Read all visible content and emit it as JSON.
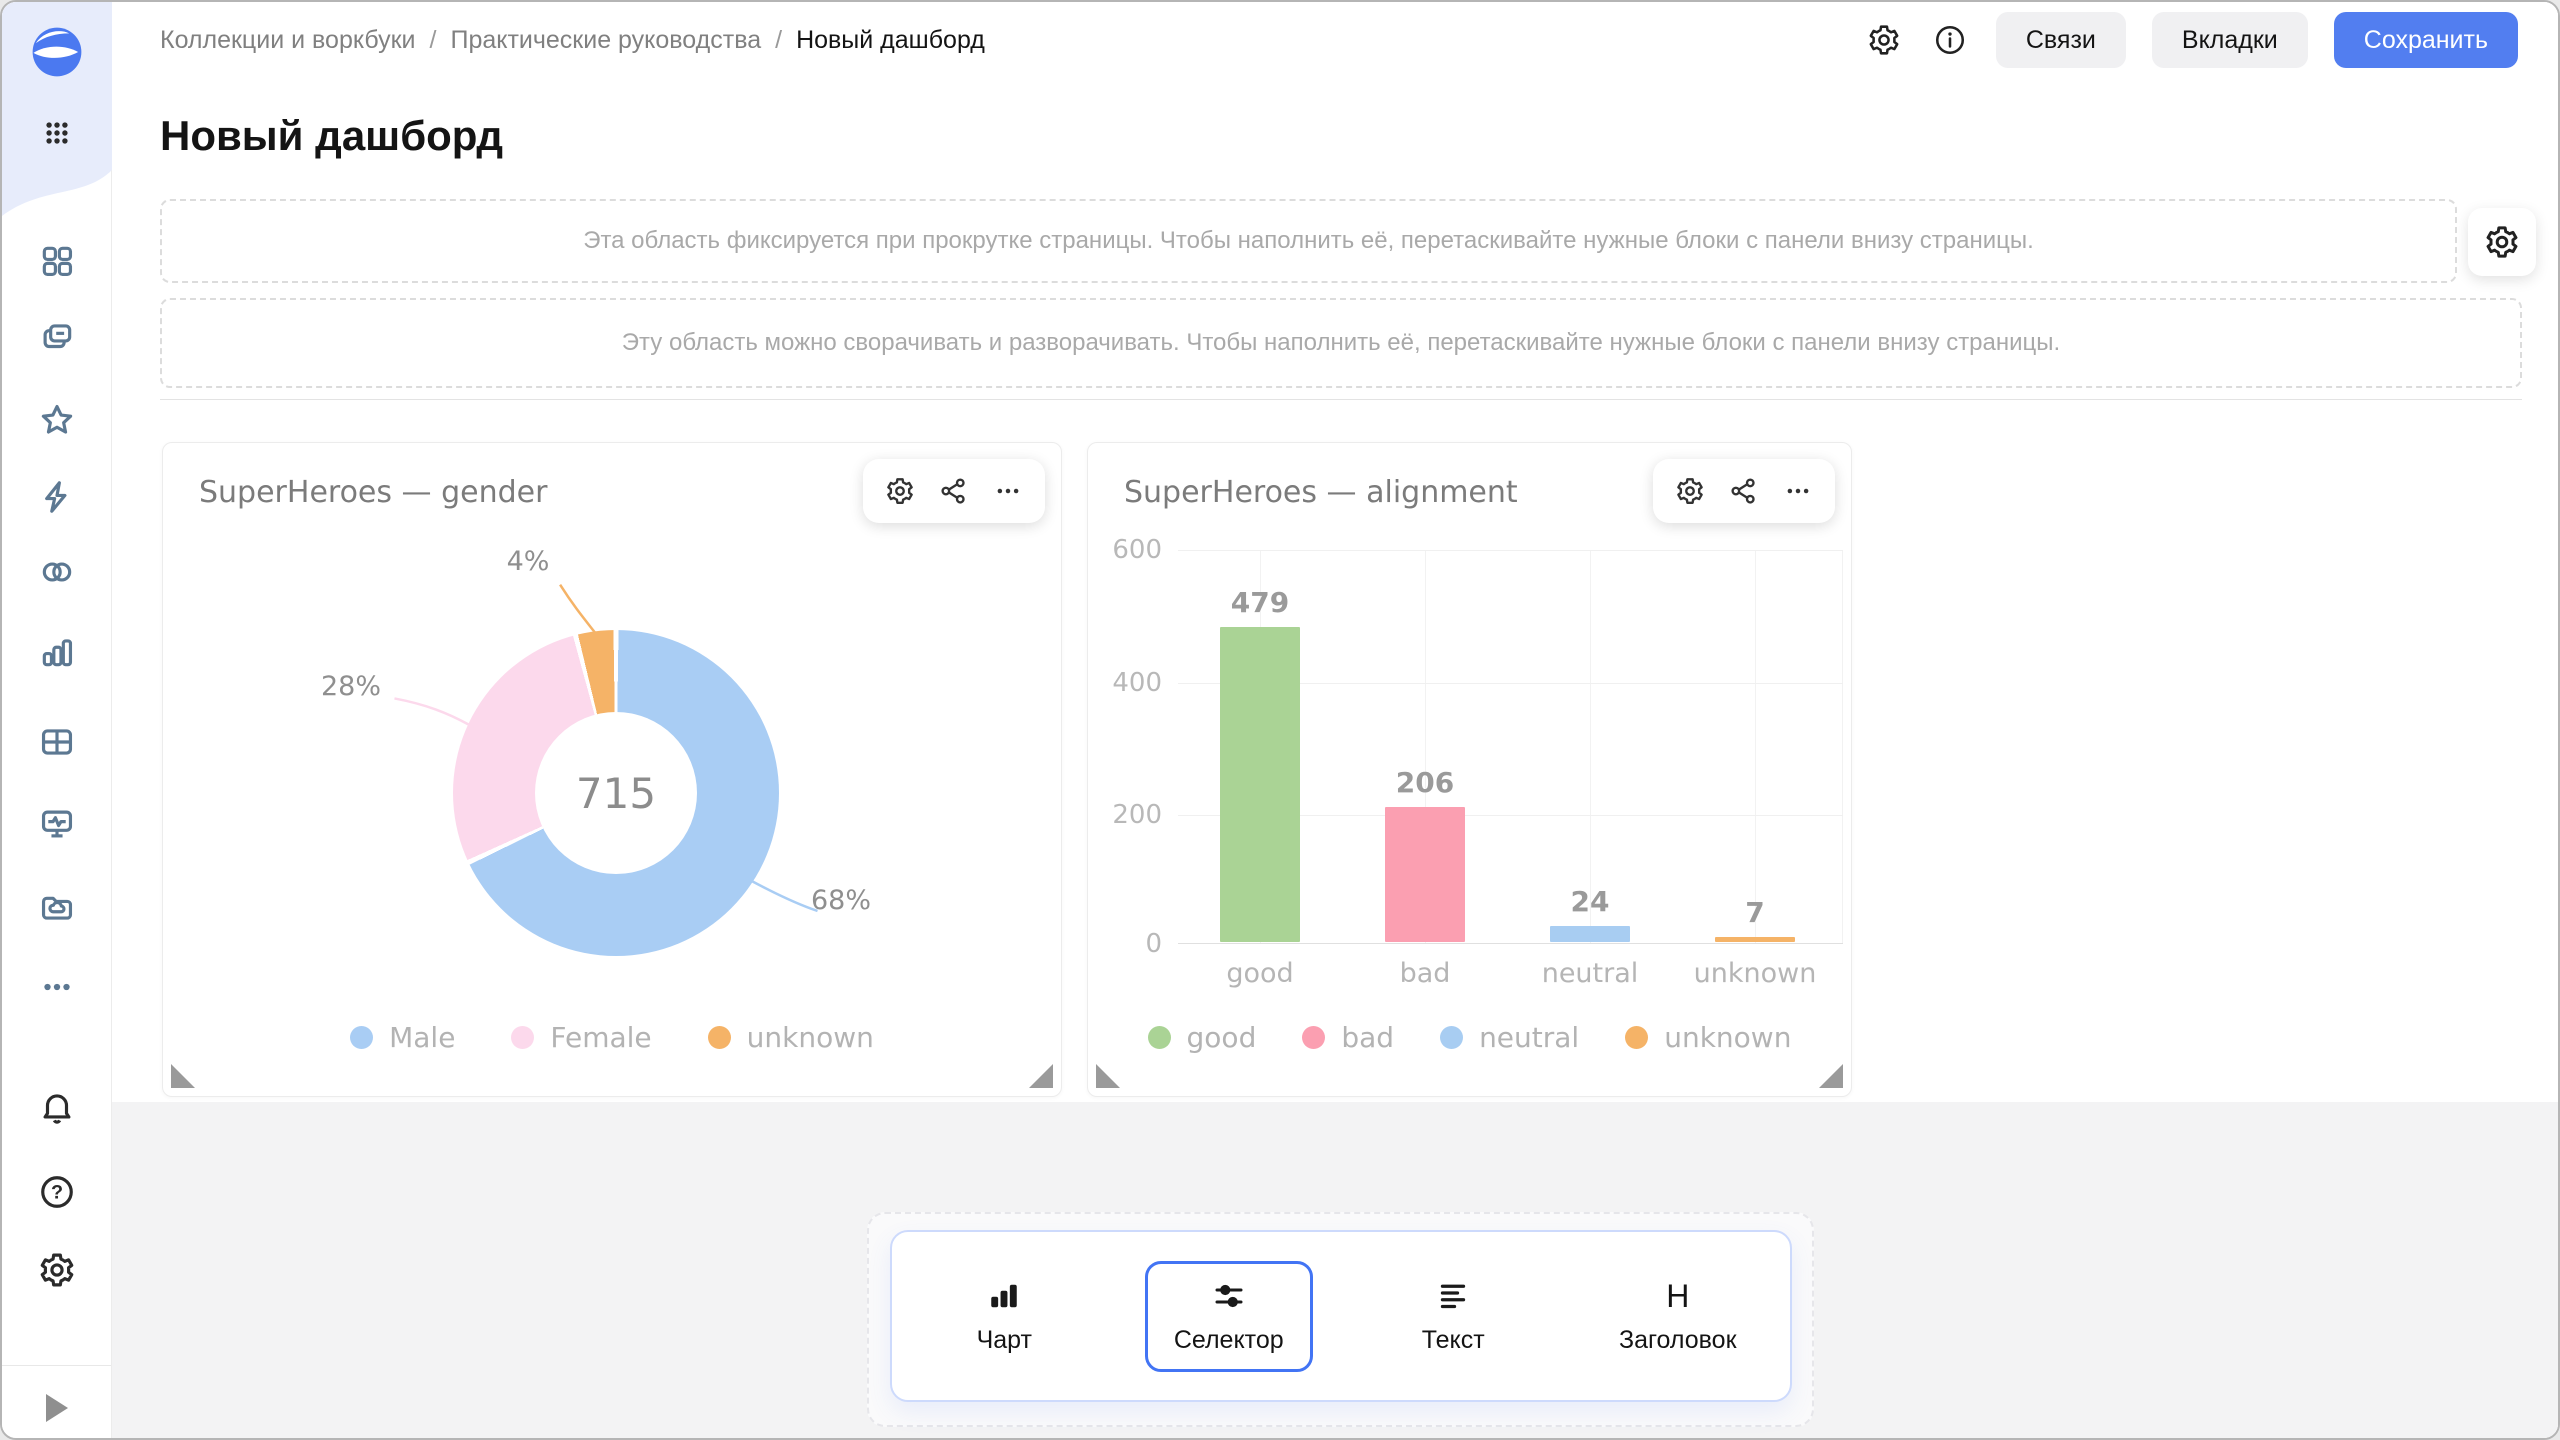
{
  "topbar": {
    "breadcrumbs": [
      {
        "label": "Коллекции и воркбуки"
      },
      {
        "label": "Практические руководства"
      },
      {
        "label": "Новый дашборд"
      }
    ],
    "crumb_separator": "/",
    "links_button": "Связи",
    "tabs_button": "Вкладки",
    "save_button": "Сохранить",
    "icons": [
      "settings-gear-icon",
      "info-circle-icon"
    ]
  },
  "sidebar": {
    "icons": [
      "datalens-logo",
      "apps-grid-icon",
      "dashboard-grid-icon",
      "collections-icon",
      "star-icon",
      "lightning-icon",
      "connections-icon",
      "charts-icon",
      "table-icon",
      "monitoring-icon",
      "cloud-folder-icon",
      "more-ellipsis-icon",
      "bell-icon",
      "help-icon",
      "settings-icon",
      "expand-play-icon"
    ]
  },
  "page": {
    "title": "Новый дашборд",
    "fixed_area_hint": "Эта область фиксируется при прокрутке страницы. Чтобы наполнить её, перетаскивайте нужные блоки с панели внизу страницы.",
    "collapsible_area_hint": "Эту область можно сворачивать и разворачивать. Чтобы наполнить её, перетаскивайте нужные блоки с панели внизу страницы."
  },
  "chart_data": [
    {
      "type": "pie",
      "donut": true,
      "title": "SuperHeroes — gender",
      "categories": [
        "Male",
        "Female",
        "unknown"
      ],
      "values": [
        68,
        28,
        4
      ],
      "labels": [
        "68%",
        "28%",
        "4%"
      ],
      "center_total": "715",
      "colors": [
        "#a9cdf4",
        "#fcd9ec",
        "#f5b367"
      ],
      "legend_position": "bottom"
    },
    {
      "type": "bar",
      "title": "SuperHeroes — alignment",
      "categories": [
        "good",
        "bad",
        "neutral",
        "unknown"
      ],
      "values": [
        479,
        206,
        24,
        7
      ],
      "colors": [
        "#aad395",
        "#fb9fb1",
        "#a8cdf2",
        "#f5b367"
      ],
      "ylim": [
        0,
        600
      ],
      "yticks": [
        0,
        200,
        400,
        600
      ],
      "grid": true,
      "legend_position": "bottom"
    }
  ],
  "widget_toolbar_icons": [
    "gear-icon",
    "relations-icon",
    "more-icon"
  ],
  "panel": {
    "items": [
      {
        "label": "Чарт",
        "selected": false
      },
      {
        "label": "Селектор",
        "selected": true
      },
      {
        "label": "Текст",
        "selected": false
      },
      {
        "label": "Заголовок",
        "selected": false
      }
    ],
    "header_glyph": "H"
  },
  "colors": {
    "accent_blue": "#527ef0",
    "selected_border": "#4274f4",
    "panel_border": "#cddafc",
    "sidebar_icon": "#5c7892",
    "grid_line": "#f0f0f0",
    "muted_text": "#b3b3b3"
  }
}
